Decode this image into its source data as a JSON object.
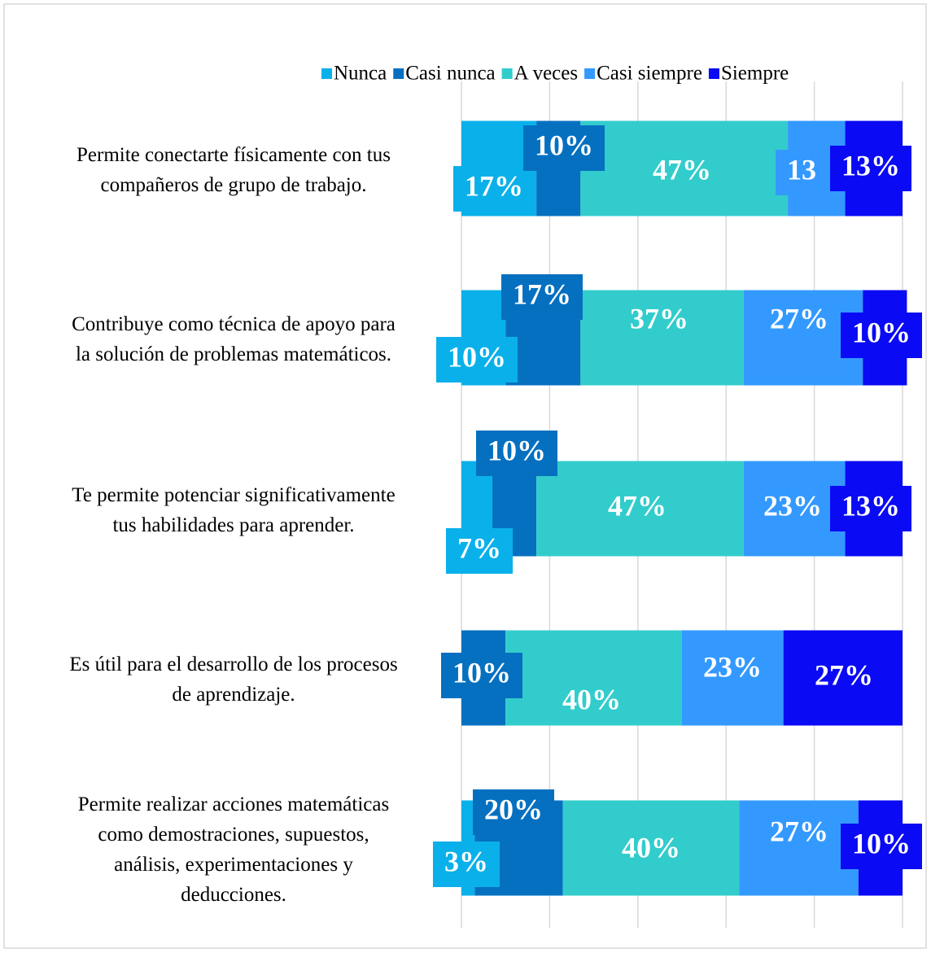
{
  "chart_data": {
    "type": "stacked_bar_horizontal",
    "categories": [
      "Permite conectarte físicamente con tus\ncompañeros de grupo de trabajo.",
      "Contribuye como técnica de apoyo para\nla solución de problemas matemáticos.",
      "Te permite potenciar significativamente\ntus habilidades para aprender.",
      "Es útil para el desarrollo de los procesos\nde aprendizaje.",
      "Permite realizar acciones matemáticas\ncomo demostraciones, supuestos,\nanálisis, experimentaciones y\ndeducciones."
    ],
    "series": [
      {
        "name": "Nunca",
        "color": "#0ab0ea",
        "values": [
          17,
          10,
          7,
          0,
          3
        ],
        "value_labels": [
          "17%",
          "10%",
          "7%",
          null,
          "3%"
        ]
      },
      {
        "name": "Casi nunca",
        "color": "#0670c0",
        "values": [
          10,
          17,
          10,
          10,
          20
        ],
        "value_labels": [
          "10%",
          "17%",
          "10%",
          "10%",
          "20%"
        ]
      },
      {
        "name": "A veces",
        "color": "#33cccc",
        "values": [
          47,
          37,
          47,
          40,
          40
        ],
        "value_labels": [
          "47%",
          "37%",
          "47%",
          "40%",
          "40%"
        ]
      },
      {
        "name": "Casi siempre",
        "color": "#3399ff",
        "values": [
          13,
          27,
          23,
          23,
          27
        ],
        "value_labels": [
          "13",
          "27%",
          "23%",
          "23%",
          "27%"
        ]
      },
      {
        "name": "Siempre",
        "color": "#0a0af5",
        "values": [
          13,
          10,
          13,
          27,
          10
        ],
        "value_labels": [
          "13%",
          "10%",
          "13%",
          "27%",
          "10%"
        ]
      }
    ],
    "xlim": [
      0,
      100
    ],
    "xticks": [
      0,
      20,
      40,
      60,
      80,
      100
    ],
    "grid": true,
    "legend": "top-right"
  }
}
